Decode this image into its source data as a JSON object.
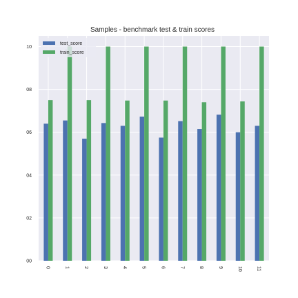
{
  "chart_data": {
    "type": "bar",
    "title": "Samples - benchmark test & train scores",
    "xlabel": "",
    "ylabel": "",
    "categories": [
      "0",
      "1",
      "2",
      "3",
      "4",
      "5",
      "6",
      "7",
      "8",
      "9",
      "10",
      "11"
    ],
    "series": [
      {
        "name": "test_score",
        "color": "#4c72b0",
        "values": [
          0.64,
          0.655,
          0.57,
          0.643,
          0.63,
          0.673,
          0.575,
          0.652,
          0.615,
          0.682,
          0.6,
          0.63
        ]
      },
      {
        "name": "train_score",
        "color": "#55a868",
        "values": [
          0.75,
          1.0,
          0.75,
          1.0,
          0.748,
          1.0,
          0.748,
          1.0,
          0.74,
          1.0,
          0.744,
          1.0
        ]
      }
    ],
    "ylim": [
      0.0,
      1.05
    ],
    "yticks": [
      0.0,
      0.2,
      0.4,
      0.6,
      0.8,
      1.0
    ],
    "ytick_labels": [
      "00",
      "02",
      "04",
      "06",
      "08",
      "10"
    ],
    "grid": true,
    "legend_position": "top-left",
    "background": "#eaeaf2",
    "grid_color": "#ffffff"
  }
}
